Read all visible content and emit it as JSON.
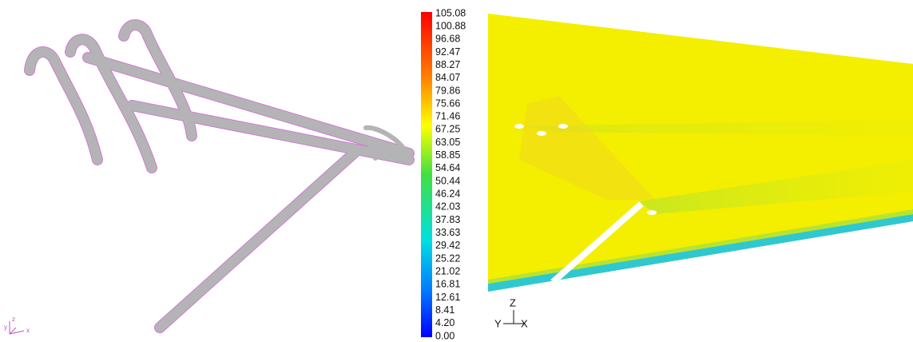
{
  "colorbar": {
    "labels": [
      "105.08",
      "100.88",
      "96.68",
      "92.47",
      "88.27",
      "84.07",
      "79.86",
      "75.66",
      "71.46",
      "67.25",
      "63.05",
      "58.85",
      "54.64",
      "50.44",
      "46.24",
      "42.03",
      "37.83",
      "33.63",
      "29.42",
      "25.22",
      "21.02",
      "16.81",
      "12.61",
      "8.41",
      "4.20",
      "0.00"
    ]
  },
  "left_axes": {
    "z": "z",
    "y": "y",
    "x": "x"
  },
  "right_axes": {
    "z": "Z",
    "y": "Y",
    "x": "X"
  }
}
